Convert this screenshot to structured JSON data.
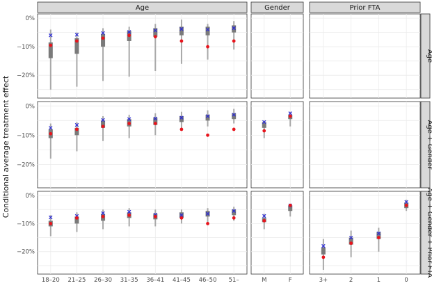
{
  "chart_data": {
    "type": "faceted-interval",
    "ylabel": "Conditional average treatment effect",
    "yticks": [
      0,
      -10,
      -20
    ],
    "ytick_labels": [
      "0%",
      "−10%",
      "−20%"
    ],
    "ylim": [
      -28,
      1.5
    ],
    "column_facets": [
      {
        "label": "Age",
        "categories": [
          "18–20",
          "21–25",
          "26–30",
          "31–35",
          "36–41",
          "41–45",
          "46–50",
          "51–"
        ]
      },
      {
        "label": "Gender",
        "categories": [
          "M",
          "F"
        ]
      },
      {
        "label": "Prior FTA",
        "categories": [
          "3+",
          "2",
          "1",
          "0"
        ]
      }
    ],
    "row_facets": [
      "Age",
      "Age + Gender",
      "Age + Gender + Prior FTA"
    ],
    "marker_colors": {
      "cross": "#2b2bd6",
      "dot": "#e8141c",
      "interval_outer": "#a8a8a8",
      "interval_inner": "#7a7a7a"
    },
    "panels": [
      {
        "row": 0,
        "col": 0,
        "points": [
          {
            "cat": "18–20",
            "lo": -25,
            "hi": -4,
            "q1": -14,
            "q3": -8.5,
            "cross": -6,
            "dot": -9.5
          },
          {
            "cat": "21–25",
            "lo": -24,
            "hi": -5,
            "q1": -12.5,
            "q3": -7,
            "cross": -5.8,
            "dot": -8
          },
          {
            "cat": "26–30",
            "lo": -22,
            "hi": -3.5,
            "q1": -10,
            "q3": -5.5,
            "cross": -5.2,
            "dot": -7
          },
          {
            "cat": "31–35",
            "lo": -20.5,
            "hi": -3,
            "q1": -8,
            "q3": -4.5,
            "cross": -4.8,
            "dot": -6
          },
          {
            "cat": "36–41",
            "lo": -18.5,
            "hi": -2,
            "q1": -6.5,
            "q3": -3.5,
            "cross": -4.3,
            "dot": -6.5
          },
          {
            "cat": "41–45",
            "lo": -16,
            "hi": -0.5,
            "q1": -6,
            "q3": -3,
            "cross": -3.8,
            "dot": -8
          },
          {
            "cat": "46–50",
            "lo": -14.5,
            "hi": -2,
            "q1": -6,
            "q3": -3,
            "cross": -4,
            "dot": -10
          },
          {
            "cat": "51–",
            "lo": -11,
            "hi": -1,
            "q1": -5,
            "q3": -2.5,
            "cross": -3.5,
            "dot": -8
          }
        ]
      },
      {
        "row": 1,
        "col": 0,
        "points": [
          {
            "cat": "18–20",
            "lo": -18,
            "hi": -6,
            "q1": -11,
            "q3": -8,
            "cross": -7.5,
            "dot": -9.5
          },
          {
            "cat": "21–25",
            "lo": -15.5,
            "hi": -5.5,
            "q1": -10,
            "q3": -7.5,
            "cross": -6.5,
            "dot": -8
          },
          {
            "cat": "26–30",
            "lo": -12,
            "hi": -3.5,
            "q1": -7.5,
            "q3": -5,
            "cross": -4.8,
            "dot": -7
          },
          {
            "cat": "31–35",
            "lo": -11,
            "hi": -3,
            "q1": -7,
            "q3": -4.5,
            "cross": -4.5,
            "dot": -6
          },
          {
            "cat": "36–41",
            "lo": -10,
            "hi": -2.5,
            "q1": -6.5,
            "q3": -4,
            "cross": -4.3,
            "dot": -6
          },
          {
            "cat": "41–45",
            "lo": -8,
            "hi": -2,
            "q1": -5.5,
            "q3": -3.5,
            "cross": -4,
            "dot": -8
          },
          {
            "cat": "46–50",
            "lo": -7,
            "hi": -1.5,
            "q1": -5,
            "q3": -3,
            "cross": -3.5,
            "dot": -10
          },
          {
            "cat": "51–",
            "lo": -6,
            "hi": -1,
            "q1": -4.5,
            "q3": -2.5,
            "cross": -3,
            "dot": -8
          }
        ]
      },
      {
        "row": 2,
        "col": 0,
        "points": [
          {
            "cat": "18–20",
            "lo": -14.5,
            "hi": -7,
            "q1": -11,
            "q3": -9,
            "cross": -7.8,
            "dot": -10
          },
          {
            "cat": "21–25",
            "lo": -13,
            "hi": -6,
            "q1": -10,
            "q3": -7.5,
            "cross": -7.3,
            "dot": -8
          },
          {
            "cat": "26–30",
            "lo": -12,
            "hi": -5,
            "q1": -9,
            "q3": -6.5,
            "cross": -6.3,
            "dot": -7.5
          },
          {
            "cat": "31–35",
            "lo": -11,
            "hi": -4.5,
            "q1": -8,
            "q3": -6,
            "cross": -5.8,
            "dot": -7
          },
          {
            "cat": "36–41",
            "lo": -11,
            "hi": -5,
            "q1": -8.5,
            "q3": -6.5,
            "cross": -6.8,
            "dot": -7.5
          },
          {
            "cat": "41–45",
            "lo": -10,
            "hi": -5,
            "q1": -8,
            "q3": -6,
            "cross": -7,
            "dot": -8
          },
          {
            "cat": "46–50",
            "lo": -10,
            "hi": -4.5,
            "q1": -7.5,
            "q3": -5.5,
            "cross": -6.5,
            "dot": -10
          },
          {
            "cat": "51–",
            "lo": -9,
            "hi": -4,
            "q1": -7,
            "q3": -5,
            "cross": -5.5,
            "dot": -8
          }
        ]
      },
      {
        "row": 1,
        "col": 1,
        "points": [
          {
            "cat": "M",
            "lo": -11,
            "hi": -5,
            "q1": -7.5,
            "q3": -5.5,
            "cross": -5.5,
            "dot": -8.5
          },
          {
            "cat": "F",
            "lo": -7,
            "hi": -2,
            "q1": -4.5,
            "q3": -3,
            "cross": -2.5,
            "dot": -3.5
          }
        ]
      },
      {
        "row": 2,
        "col": 1,
        "points": [
          {
            "cat": "M",
            "lo": -12,
            "hi": -6.5,
            "q1": -9.5,
            "q3": -8,
            "cross": -7.3,
            "dot": -9
          },
          {
            "cat": "F",
            "lo": -7.5,
            "hi": -3,
            "q1": -5.5,
            "q3": -3.5,
            "cross": -3.5,
            "dot": -3.5
          }
        ]
      },
      {
        "row": 2,
        "col": 2,
        "points": [
          {
            "cat": "3+",
            "lo": -26.5,
            "hi": -15.5,
            "q1": -21,
            "q3": -18.5,
            "cross": -18,
            "dot": -22
          },
          {
            "cat": "2",
            "lo": -22,
            "hi": -12.5,
            "q1": -17.5,
            "q3": -15,
            "cross": -15,
            "dot": -17
          },
          {
            "cat": "1",
            "lo": -20,
            "hi": -11.5,
            "q1": -15.5,
            "q3": -13,
            "cross": -13.5,
            "dot": -15
          },
          {
            "cat": "0",
            "lo": -5.5,
            "hi": -1.5,
            "q1": -4.5,
            "q3": -2.5,
            "cross": -2.3,
            "dot": -3.5
          }
        ]
      }
    ]
  }
}
